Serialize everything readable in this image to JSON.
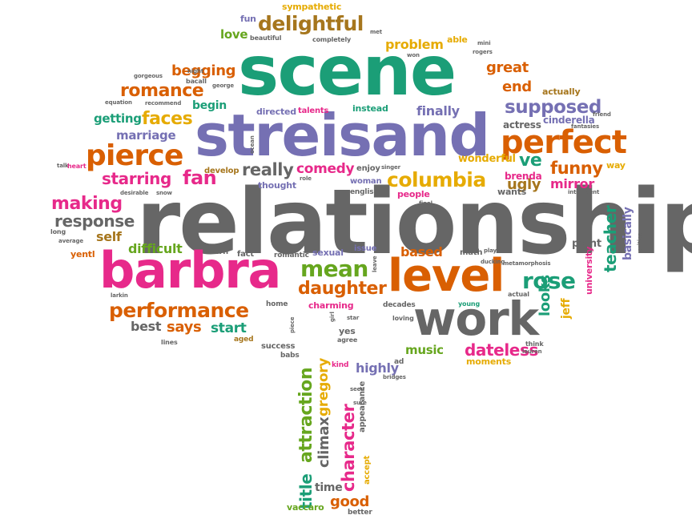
{
  "palette": {
    "green": "#1b9e77",
    "purple": "#7570b3",
    "pink": "#e7298a",
    "orange": "#d95f02",
    "gray": "#666666",
    "olive": "#66a61e",
    "gold": "#e6ab02",
    "brown": "#a6761d"
  },
  "words": [
    {
      "text": "relationship",
      "color": "gray"
    },
    {
      "text": "scene",
      "color": "green"
    },
    {
      "text": "streisand",
      "color": "purple"
    },
    {
      "text": "barbra",
      "color": "pink"
    },
    {
      "text": "level",
      "color": "orange"
    },
    {
      "text": "work",
      "color": "gray"
    },
    {
      "text": "perfect",
      "color": "orange"
    },
    {
      "text": "pierce",
      "color": "orange"
    },
    {
      "text": "delightful",
      "color": "brown"
    },
    {
      "text": "romance",
      "color": "orange"
    },
    {
      "text": "columbia",
      "color": "gold"
    },
    {
      "text": "performance",
      "color": "orange"
    },
    {
      "text": "daughter",
      "color": "orange"
    },
    {
      "text": "mean",
      "color": "olive"
    },
    {
      "text": "rose",
      "color": "green"
    },
    {
      "text": "faces",
      "color": "gold"
    },
    {
      "text": "supposed",
      "color": "purple"
    },
    {
      "text": "making",
      "color": "pink"
    },
    {
      "text": "response",
      "color": "gray"
    },
    {
      "text": "starring",
      "color": "pink"
    },
    {
      "text": "fan",
      "color": "pink"
    },
    {
      "text": "funny",
      "color": "orange"
    },
    {
      "text": "really",
      "color": "gray"
    },
    {
      "text": "comedy",
      "color": "pink"
    },
    {
      "text": "begging",
      "color": "orange"
    },
    {
      "text": "great",
      "color": "orange"
    },
    {
      "text": "problem",
      "color": "gold"
    },
    {
      "text": "end",
      "color": "orange"
    },
    {
      "text": "ve",
      "color": "green"
    },
    {
      "text": "teacher",
      "color": "green"
    },
    {
      "text": "dateless",
      "color": "pink"
    },
    {
      "text": "says",
      "color": "orange"
    },
    {
      "text": "start",
      "color": "green"
    },
    {
      "text": "best",
      "color": "gray"
    },
    {
      "text": "based",
      "color": "orange"
    },
    {
      "text": "difficult",
      "color": "olive"
    },
    {
      "text": "self",
      "color": "brown"
    },
    {
      "text": "ugly",
      "color": "brown"
    },
    {
      "text": "mirror",
      "color": "pink"
    },
    {
      "text": "looks",
      "color": "green"
    },
    {
      "text": "good",
      "color": "orange"
    },
    {
      "text": "attraction",
      "color": "olive"
    },
    {
      "text": "character",
      "color": "pink"
    },
    {
      "text": "title",
      "color": "green"
    },
    {
      "text": "clímax",
      "color": "gray"
    },
    {
      "text": "gregory",
      "color": "gold"
    },
    {
      "text": "highly",
      "color": "purple"
    },
    {
      "text": "music",
      "color": "olive"
    },
    {
      "text": "love",
      "color": "olive"
    },
    {
      "text": "fun",
      "color": "purple"
    },
    {
      "text": "sympathetic",
      "color": "gold"
    },
    {
      "text": "finally",
      "color": "purple"
    },
    {
      "text": "marriage",
      "color": "purple"
    },
    {
      "text": "getting",
      "color": "green"
    },
    {
      "text": "begin",
      "color": "green"
    },
    {
      "text": "basically",
      "color": "purple"
    },
    {
      "text": "jeff",
      "color": "gold"
    },
    {
      "text": "time",
      "color": "gray"
    },
    {
      "text": "vaccaro",
      "color": "olive"
    },
    {
      "text": "actually",
      "color": "brown"
    },
    {
      "text": "actress",
      "color": "gray"
    },
    {
      "text": "cinderella",
      "color": "purple"
    },
    {
      "text": "wonderful",
      "color": "gold"
    },
    {
      "text": "brenda",
      "color": "pink"
    },
    {
      "text": "wants",
      "color": "gray"
    },
    {
      "text": "people",
      "color": "pink"
    },
    {
      "text": "point",
      "color": "gray"
    },
    {
      "text": "university",
      "color": "pink"
    },
    {
      "text": "moments",
      "color": "gold"
    },
    {
      "text": "thought",
      "color": "purple"
    },
    {
      "text": "develop",
      "color": "brown"
    },
    {
      "text": "enjoy",
      "color": "gray"
    },
    {
      "text": "woman",
      "color": "purple"
    },
    {
      "text": "english",
      "color": "gray"
    },
    {
      "text": "directed",
      "color": "purple"
    },
    {
      "text": "talents",
      "color": "pink"
    },
    {
      "text": "instead",
      "color": "green"
    },
    {
      "text": "able",
      "color": "gold"
    },
    {
      "text": "sexual",
      "color": "purple"
    },
    {
      "text": "issue",
      "color": "purple"
    },
    {
      "text": "charming",
      "color": "pink"
    },
    {
      "text": "math",
      "color": "gray"
    },
    {
      "text": "learn",
      "color": "gray"
    },
    {
      "text": "fact",
      "color": "gray"
    },
    {
      "text": "romantic",
      "color": "gray"
    },
    {
      "text": "yentl",
      "color": "orange"
    },
    {
      "text": "way",
      "color": "gold"
    },
    {
      "text": "success",
      "color": "gray"
    },
    {
      "text": "yes",
      "color": "gray"
    },
    {
      "text": "babs",
      "color": "gray"
    },
    {
      "text": "kind",
      "color": "pink"
    },
    {
      "text": "accept",
      "color": "gold"
    },
    {
      "text": "better",
      "color": "gray"
    },
    {
      "text": "appearance",
      "color": "gray"
    },
    {
      "text": "home",
      "color": "gray"
    },
    {
      "text": "lines",
      "color": "gray"
    },
    {
      "text": "aged",
      "color": "brown"
    },
    {
      "text": "agree",
      "color": "gray"
    },
    {
      "text": "decades",
      "color": "gray"
    },
    {
      "text": "loving",
      "color": "gray"
    },
    {
      "text": "young",
      "color": "green"
    },
    {
      "text": "actual",
      "color": "gray"
    },
    {
      "text": "think",
      "color": "gray"
    },
    {
      "text": "lauren",
      "color": "gray"
    },
    {
      "text": "ad",
      "color": "gray"
    },
    {
      "text": "bridges",
      "color": "gray"
    },
    {
      "text": "plays",
      "color": "gray"
    },
    {
      "text": "metamorphosis",
      "color": "gray"
    },
    {
      "text": "ducking",
      "color": "gray"
    },
    {
      "text": "intelligent",
      "color": "gray"
    },
    {
      "text": "critics",
      "color": "gray"
    },
    {
      "text": "friend",
      "color": "gray"
    },
    {
      "text": "fantasies",
      "color": "gray"
    },
    {
      "text": "equation",
      "color": "gray"
    },
    {
      "text": "recommend",
      "color": "gray"
    },
    {
      "text": "gorgeous",
      "color": "gray"
    },
    {
      "text": "bacall",
      "color": "gray"
    },
    {
      "text": "night",
      "color": "gray"
    },
    {
      "text": "george",
      "color": "gray"
    },
    {
      "text": "beautiful",
      "color": "gray"
    },
    {
      "text": "completely",
      "color": "gray"
    },
    {
      "text": "met",
      "color": "gray"
    },
    {
      "text": "mini",
      "color": "gray"
    },
    {
      "text": "rogers",
      "color": "gray"
    },
    {
      "text": "won",
      "color": "gray"
    },
    {
      "text": "talk",
      "color": "gray"
    },
    {
      "text": "heart",
      "color": "pink"
    },
    {
      "text": "desirable",
      "color": "gray"
    },
    {
      "text": "snow",
      "color": "gray"
    },
    {
      "text": "long",
      "color": "gray"
    },
    {
      "text": "average",
      "color": "gray"
    },
    {
      "text": "larkin",
      "color": "gray"
    },
    {
      "text": "singer",
      "color": "gray"
    },
    {
      "text": "final",
      "color": "gray"
    },
    {
      "text": "role",
      "color": "gray"
    },
    {
      "text": "ocean",
      "color": "gray"
    },
    {
      "text": "leave",
      "color": "gray"
    },
    {
      "text": "star",
      "color": "gray"
    },
    {
      "text": "girl",
      "color": "gray"
    },
    {
      "text": "piece",
      "color": "gray"
    },
    {
      "text": "seen",
      "color": "gray"
    },
    {
      "text": "sure",
      "color": "gray"
    }
  ]
}
